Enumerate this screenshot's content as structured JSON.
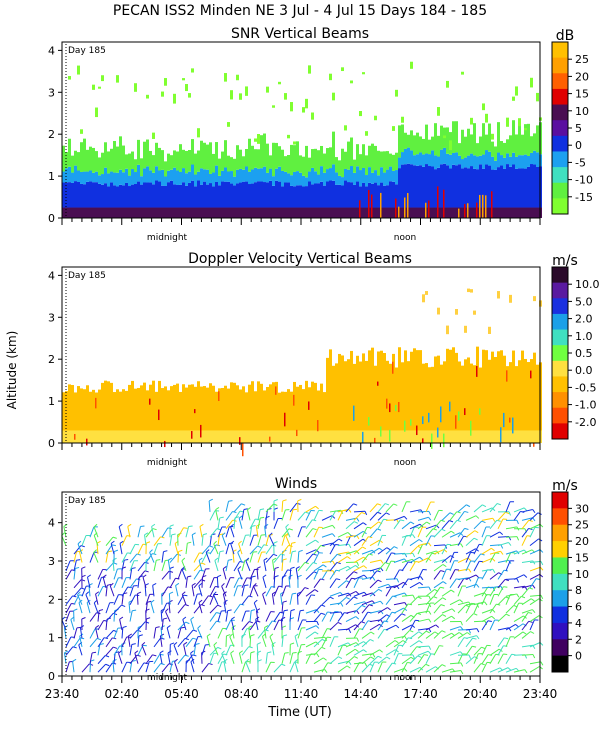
{
  "header": {
    "title": "PECAN ISS2 Minden NE    3 Jul -   4 Jul 15 Days 184 - 185"
  },
  "chart_data": [
    {
      "type": "heatmap",
      "title": "SNR Vertical Beams",
      "xlabel": "",
      "ylabel": "",
      "ylim": [
        0,
        4.2
      ],
      "yticks": [
        "0",
        "1",
        "2",
        "3",
        "4"
      ],
      "day_marker": "Day 185",
      "time_markers": [
        "midnight",
        "noon"
      ],
      "colorbar": {
        "unit": "dB",
        "labels": [
          "25",
          "20",
          "15",
          "10",
          "5",
          "0",
          "-5",
          "-10",
          "-15"
        ],
        "colors": [
          "#ffc000",
          "#ffa000",
          "#ff6000",
          "#e00000",
          "#4a0e52",
          "#5a0fa0",
          "#1030e0",
          "#1ca0f0",
          "#40e0c0",
          "#60f040",
          "#80ff30"
        ]
      }
    },
    {
      "type": "heatmap",
      "title": "Doppler Velocity Vertical Beams",
      "ylabel": "Altitude (km)",
      "ylim": [
        0,
        4.2
      ],
      "yticks": [
        "0",
        "1",
        "2",
        "3",
        "4"
      ],
      "day_marker": "Day 185",
      "time_markers": [
        "midnight",
        "noon"
      ],
      "colorbar": {
        "unit": "m/s",
        "labels": [
          "10.0",
          "5.0",
          "2.0",
          "1.0",
          "0.5",
          "0.0",
          "-0.5",
          "-1.0",
          "-2.0"
        ],
        "colors": [
          "#2a0a2a",
          "#5a1aa0",
          "#1a30e0",
          "#1ca0e8",
          "#40e0c0",
          "#70ff40",
          "#ffe040",
          "#ffc000",
          "#ff9000",
          "#ff5000",
          "#e00000"
        ]
      }
    },
    {
      "type": "scatter",
      "title": "Winds",
      "xlabel": "Time (UT)",
      "ylim": [
        0,
        4.8
      ],
      "yticks": [
        "0",
        "1",
        "2",
        "3",
        "4"
      ],
      "xticks": [
        "23:40",
        "02:40",
        "05:40",
        "08:40",
        "11:40",
        "14:40",
        "17:40",
        "20:40",
        "23:40"
      ],
      "day_marker": "Day 185",
      "time_markers": [
        "midnight",
        "noon"
      ],
      "colorbar": {
        "unit": "m/s",
        "labels": [
          "30",
          "25",
          "20",
          "15",
          "10",
          "8",
          "6",
          "4",
          "2",
          "0"
        ],
        "colors": [
          "#e00000",
          "#ff5000",
          "#ffa000",
          "#ffd000",
          "#50f050",
          "#40e0c0",
          "#1ca0e8",
          "#1030e0",
          "#3010c0",
          "#400060",
          "#000000"
        ]
      }
    }
  ]
}
